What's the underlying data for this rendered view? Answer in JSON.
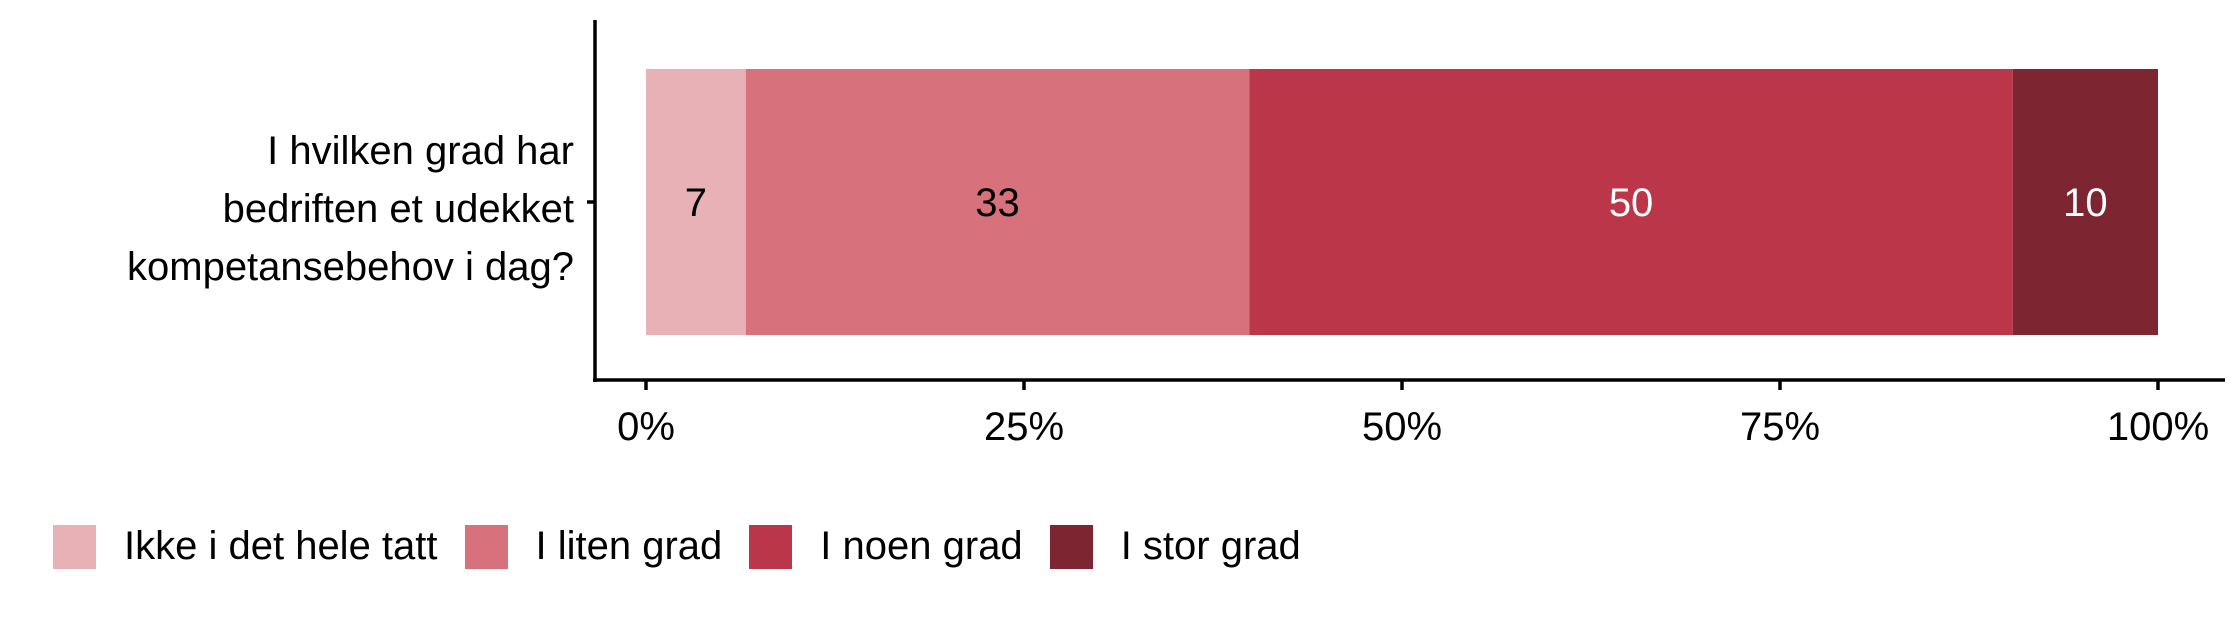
{
  "chart_data": {
    "type": "bar",
    "orientation": "horizontal",
    "stacked": true,
    "categories": [
      "I hvilken grad har bedriften et udekket kompetansebehov i dag?"
    ],
    "category_lines": [
      "I hvilken grad har",
      "bedriften et udekket",
      "kompetansebehov i dag?"
    ],
    "series": [
      {
        "name": "Ikke i det hele tatt",
        "values": [
          6.6
        ],
        "label": "7",
        "color": "#E8B1B6",
        "label_color": "#000000"
      },
      {
        "name": "I liten grad",
        "values": [
          33.3
        ],
        "label": "33",
        "color": "#D7717C",
        "label_color": "#000000"
      },
      {
        "name": "I noen grad",
        "values": [
          50.5
        ],
        "label": "50",
        "color": "#BC3649",
        "label_color": "#FFFFFF"
      },
      {
        "name": "I stor grad",
        "values": [
          9.6
        ],
        "label": "10",
        "color": "#7D2530",
        "label_color": "#FFFFFF"
      }
    ],
    "xlim": [
      0,
      100
    ],
    "xticks": [
      0,
      25,
      50,
      75,
      100
    ],
    "xtick_labels": [
      "0%",
      "25%",
      "50%",
      "75%",
      "100%"
    ],
    "grid": false,
    "legend_position": "bottom"
  }
}
